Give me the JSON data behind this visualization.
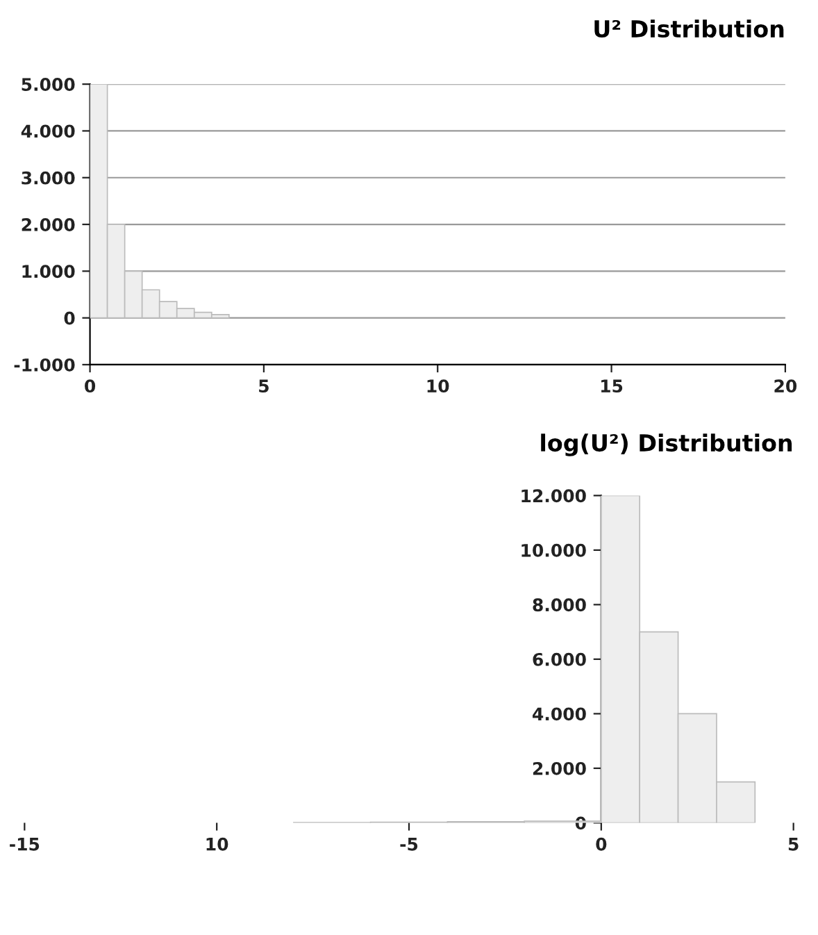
{
  "chart_data": [
    {
      "type": "histogram",
      "title": "U² Distribution",
      "bins": [
        0,
        0.5,
        1,
        1.5,
        2,
        2.5,
        3,
        3.5,
        4
      ],
      "values": [
        5000,
        2000,
        1000,
        600,
        350,
        200,
        120,
        70
      ],
      "color": "#eeeeee",
      "xlim": [
        0,
        20
      ],
      "xticks": [
        0,
        5,
        10,
        15,
        20
      ],
      "ylim": [
        -1000,
        5000
      ],
      "yticks": [
        {
          "value": -1000,
          "label": "-1.000"
        },
        0,
        {
          "value": 1000,
          "label": "1.000"
        },
        {
          "value": 2000,
          "label": "2.000"
        },
        {
          "value": 3000,
          "label": "3.000"
        },
        {
          "value": 4000,
          "label": "4.000"
        },
        {
          "value": 5000,
          "label": "5.000"
        }
      ],
      "grid": "y"
    },
    {
      "type": "histogram",
      "title": "log(U²) Distribution",
      "bins": [
        -8,
        -6,
        -4,
        -2,
        0,
        1,
        2,
        3,
        4
      ],
      "values": [
        10,
        20,
        40,
        60,
        12000,
        7000,
        4000,
        1500
      ],
      "color": "#eeeeee",
      "xlim": [
        -15,
        5
      ],
      "xticks": [
        -15,
        {
          "value": -10,
          "label": "10"
        },
        -5,
        0,
        5
      ],
      "ylim": [
        0,
        12000
      ],
      "yticks": [
        0,
        {
          "value": 2000,
          "label": "2.000"
        },
        {
          "value": 4000,
          "label": "4.000"
        },
        {
          "value": 6000,
          "label": "6.000"
        },
        {
          "value": 8000,
          "label": "8.000"
        },
        {
          "value": 10000,
          "label": "10.000"
        },
        {
          "value": 12000,
          "label": "12.000"
        }
      ],
      "grid": false
    }
  ]
}
